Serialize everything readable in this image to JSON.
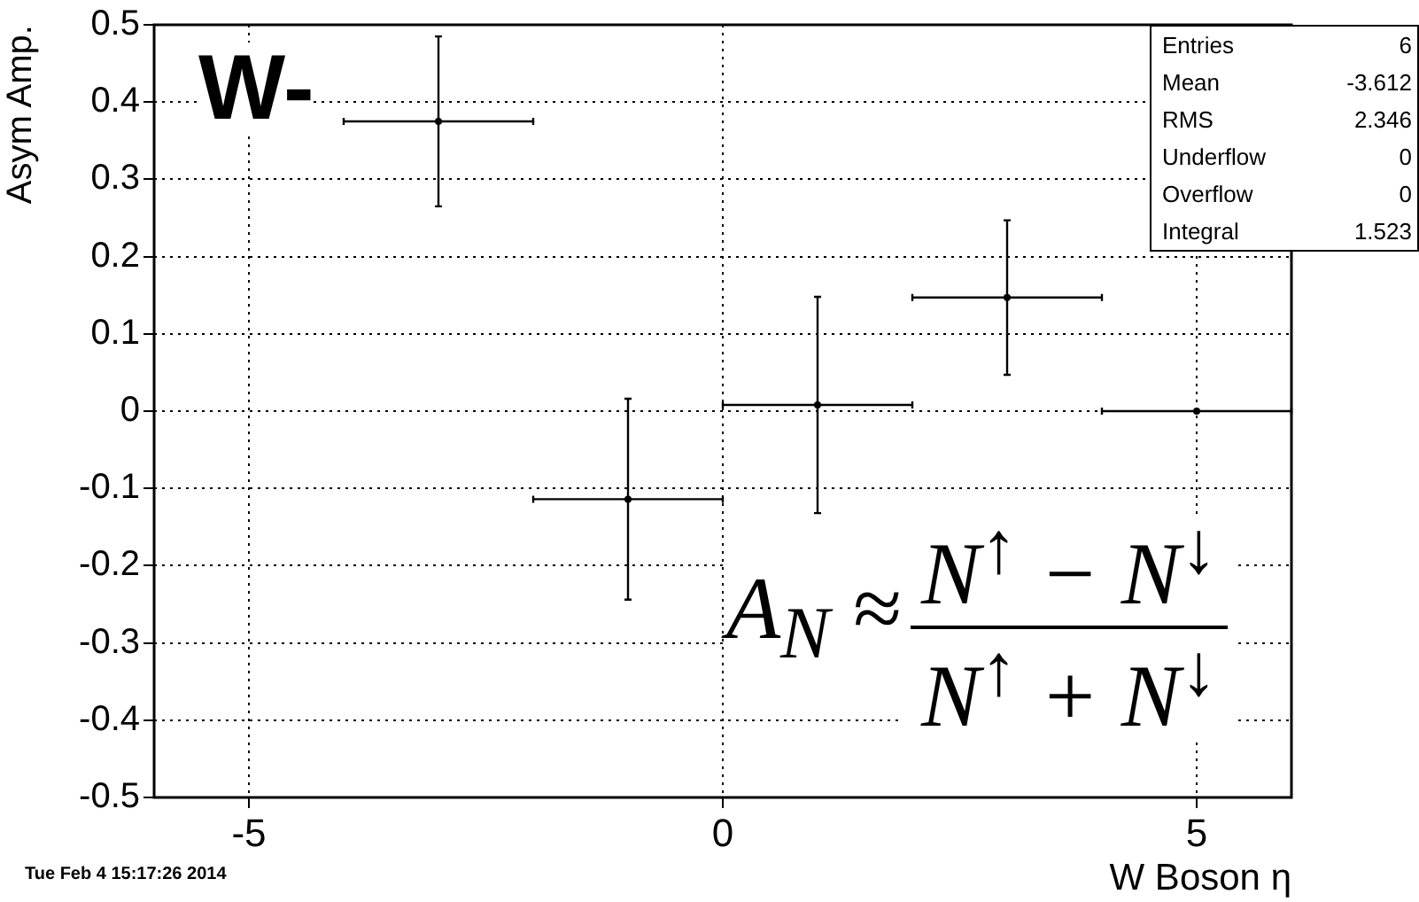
{
  "chart_data": {
    "type": "scatter",
    "xlabel": "W Boson η",
    "ylabel": "Asym Amp.",
    "x": [
      -3,
      -1,
      1,
      3,
      5
    ],
    "values": [
      0.375,
      -0.114,
      0.008,
      0.147,
      0
    ],
    "errors": [
      0.11,
      0.13,
      0.14,
      0.1,
      null
    ],
    "xerrors": [
      1,
      1,
      1,
      1,
      1
    ],
    "color": "#000000",
    "xlim": [
      -6,
      6
    ],
    "xticks": [
      -5,
      0,
      5
    ],
    "ylim": [
      -0.5,
      0.5
    ],
    "yticks": [
      -0.5,
      -0.4,
      -0.3,
      -0.2,
      -0.1,
      0,
      0.1,
      0.2,
      0.3,
      0.4,
      0.5
    ],
    "grid": true,
    "legend": false,
    "annotations": [
      "W-",
      "A$_{N}$ ≈",
      "N$^{↑}$ − N$^{↓}$",
      "N$^{↑}$ + N$^{↓}$",
      "Tue Feb  4 15:17:26 2014",
      "Entries",
      "6",
      "Mean",
      "-3.612",
      "RMS",
      "2.346",
      "Underflow",
      "0",
      "Overflow",
      "0",
      "Integral",
      "1.523"
    ]
  }
}
